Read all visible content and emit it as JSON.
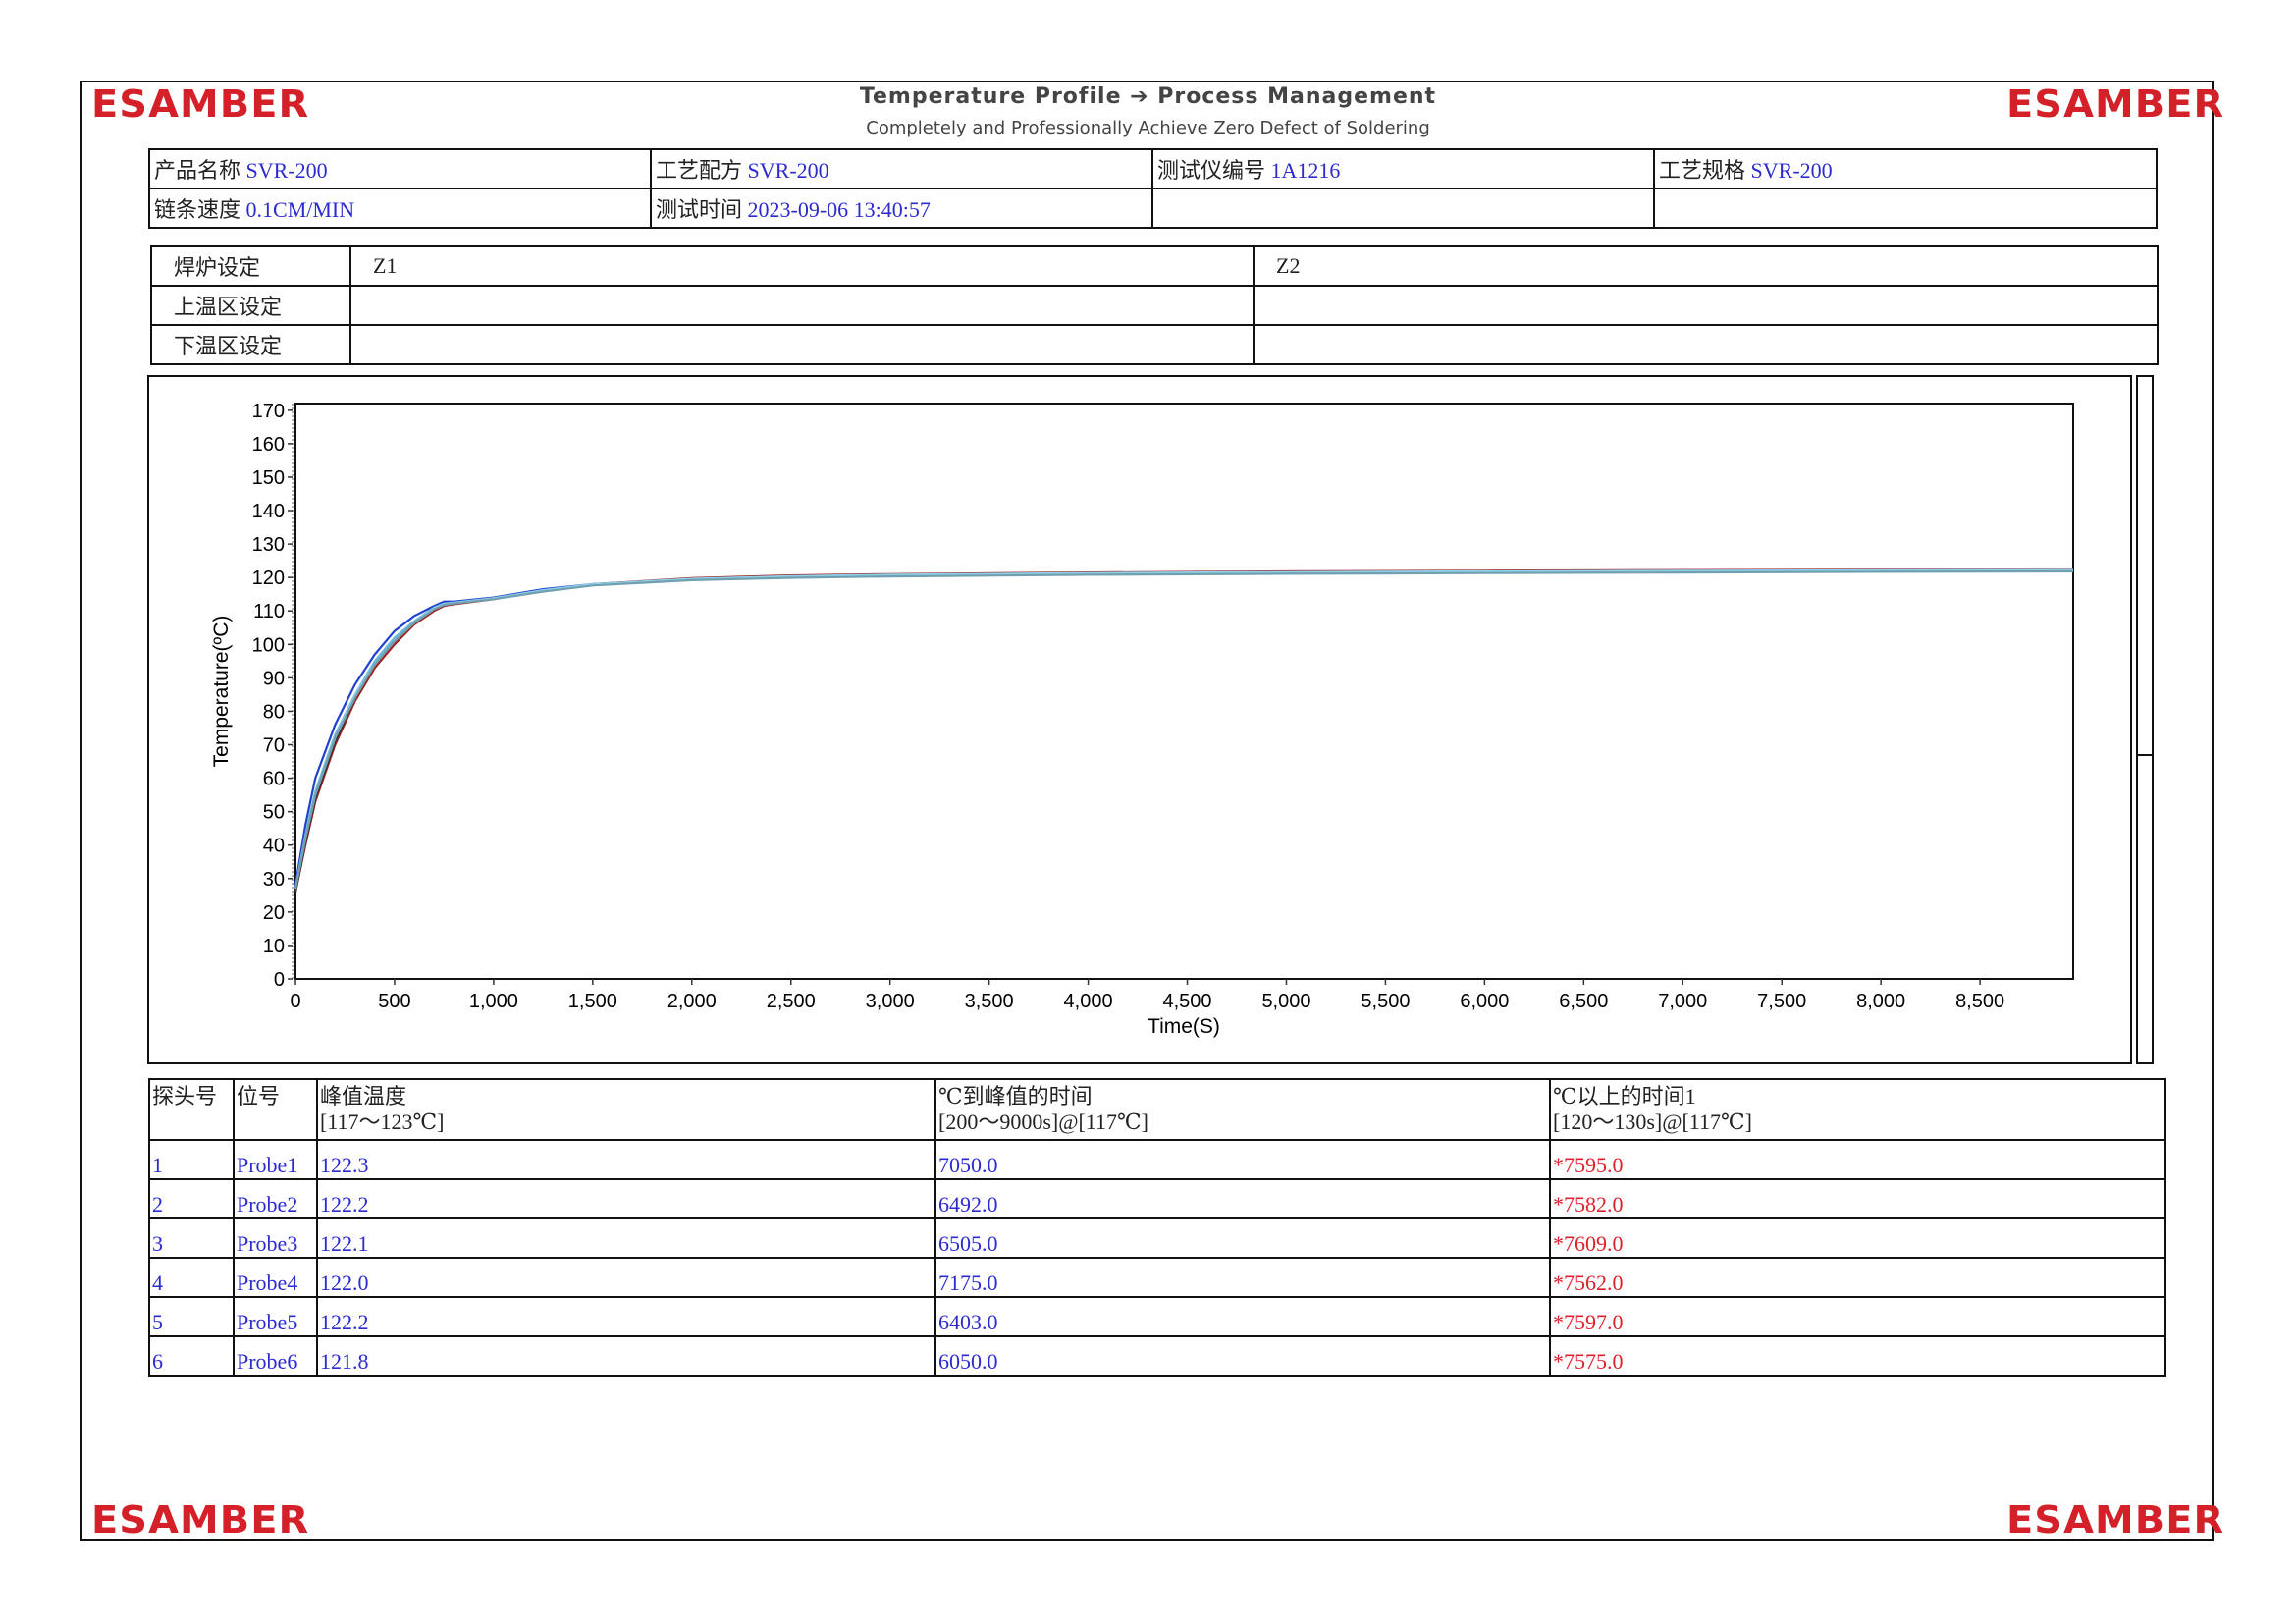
{
  "brand": {
    "logo": "ESAMBER",
    "logo_color": "#d42028"
  },
  "header": {
    "title": "Temperature Profile ➔ Process Management",
    "subtitle": "Completely and Professionally Achieve Zero Defect of Soldering"
  },
  "info": {
    "product_label": "产品名称",
    "product_value": "SVR-200",
    "recipe_label": "工艺配方",
    "recipe_value": "SVR-200",
    "tester_label": "测试仪编号",
    "tester_value": "1A1216",
    "spec_label": "工艺规格",
    "spec_value": "SVR-200",
    "speed_label": "链条速度",
    "speed_value": "0.1CM/MIN",
    "time_label": "测试时间",
    "time_value": "2023-09-06 13:40:57"
  },
  "zones": {
    "row_labels": [
      "焊炉设定",
      "上温区设定",
      "下温区设定"
    ],
    "zone_names": [
      "Z1",
      "Z2"
    ]
  },
  "chart_data": {
    "type": "line",
    "xlabel": "Time(S)",
    "ylabel": "Temperature(ºC)",
    "xlim": [
      0,
      8970
    ],
    "ylim": [
      0,
      172
    ],
    "xticks": [
      0,
      500,
      1000,
      1500,
      2000,
      2500,
      3000,
      3500,
      4000,
      4500,
      5000,
      5500,
      6000,
      6500,
      7000,
      7500,
      8000,
      8500
    ],
    "xtick_labels": [
      "0",
      "500",
      "1,000",
      "1,500",
      "2,000",
      "2,500",
      "3,000",
      "3,500",
      "4,000",
      "4,500",
      "5,000",
      "5,500",
      "6,000",
      "6,500",
      "7,000",
      "7,500",
      "8,000",
      "8,500"
    ],
    "yticks": [
      0,
      10,
      20,
      30,
      40,
      50,
      60,
      70,
      80,
      90,
      100,
      110,
      120,
      130,
      140,
      150,
      160,
      170
    ],
    "grid": false,
    "legend": "none",
    "x": [
      0,
      50,
      100,
      200,
      300,
      400,
      500,
      600,
      700,
      750,
      800,
      1000,
      1250,
      1500,
      2000,
      2500,
      3000,
      4000,
      5000,
      6000,
      7000,
      8000,
      8970
    ],
    "series": [
      {
        "color": "#a02020",
        "values": [
          26,
          40,
          53,
          70,
          83,
          93,
          100,
          106,
          110,
          111.5,
          112,
          113.5,
          116,
          118,
          119.8,
          120.6,
          121,
          121.5,
          121.8,
          122,
          122.2,
          122.3,
          122.3
        ]
      },
      {
        "color": "#2040d0",
        "values": [
          28,
          46,
          60,
          76,
          88,
          97,
          104,
          108.5,
          111.5,
          112.8,
          112.8,
          114,
          116.5,
          118,
          119.5,
          120.3,
          120.7,
          121.2,
          121.5,
          121.7,
          121.9,
          122.1,
          122.2
        ]
      },
      {
        "color": "#303030",
        "values": [
          26,
          41,
          54,
          71,
          84,
          94,
          101,
          106.5,
          110.5,
          112,
          112.3,
          113.8,
          116,
          117.8,
          119.5,
          120.3,
          120.7,
          121.1,
          121.4,
          121.6,
          121.8,
          121.9,
          122.1
        ]
      },
      {
        "color": "#6ab8d8",
        "values": [
          27,
          43,
          56,
          73,
          85,
          95,
          102,
          107,
          111,
          112.2,
          112.5,
          113.8,
          116,
          117.8,
          119.3,
          120,
          120.5,
          121,
          121.3,
          121.5,
          121.7,
          121.8,
          122.0
        ]
      },
      {
        "color": "#8fd0e8",
        "values": [
          27,
          42,
          55,
          72,
          85,
          94,
          101,
          106.5,
          110.8,
          112,
          112.4,
          113.8,
          116.2,
          118,
          119.6,
          120.4,
          120.8,
          121.3,
          121.6,
          121.8,
          122,
          122.1,
          122.2
        ]
      },
      {
        "color": "#70a0b0",
        "values": [
          27,
          42,
          55,
          72,
          84,
          94,
          101,
          106.5,
          110.5,
          111.8,
          112.2,
          113.5,
          115.8,
          117.6,
          119.2,
          119.9,
          120.3,
          120.8,
          121.1,
          121.3,
          121.5,
          121.7,
          121.8
        ]
      }
    ]
  },
  "results": {
    "headers": [
      {
        "line1": "探头号",
        "line2": ""
      },
      {
        "line1": "位号",
        "line2": ""
      },
      {
        "line1": "峰值温度",
        "line2": "[117～123℃]"
      },
      {
        "line1": "℃到峰值的时间",
        "line2": "[200～9000s]@[117℃]"
      },
      {
        "line1": "℃以上的时间1",
        "line2": "[120～130s]@[117℃]"
      }
    ],
    "rows": [
      {
        "no": "1",
        "probe": "Probe1",
        "peak": "122.3",
        "time_to_peak": "7050.0",
        "time_above": "*7595.0"
      },
      {
        "no": "2",
        "probe": "Probe2",
        "peak": "122.2",
        "time_to_peak": "6492.0",
        "time_above": "*7582.0"
      },
      {
        "no": "3",
        "probe": "Probe3",
        "peak": "122.1",
        "time_to_peak": "6505.0",
        "time_above": "*7609.0"
      },
      {
        "no": "4",
        "probe": "Probe4",
        "peak": "122.0",
        "time_to_peak": "7175.0",
        "time_above": "*7562.0"
      },
      {
        "no": "5",
        "probe": "Probe5",
        "peak": "122.2",
        "time_to_peak": "6403.0",
        "time_above": "*7597.0"
      },
      {
        "no": "6",
        "probe": "Probe6",
        "peak": "121.8",
        "time_to_peak": "6050.0",
        "time_above": "*7575.0"
      }
    ],
    "value_color": "#2b2bd0",
    "fail_color": "#e0202a"
  }
}
